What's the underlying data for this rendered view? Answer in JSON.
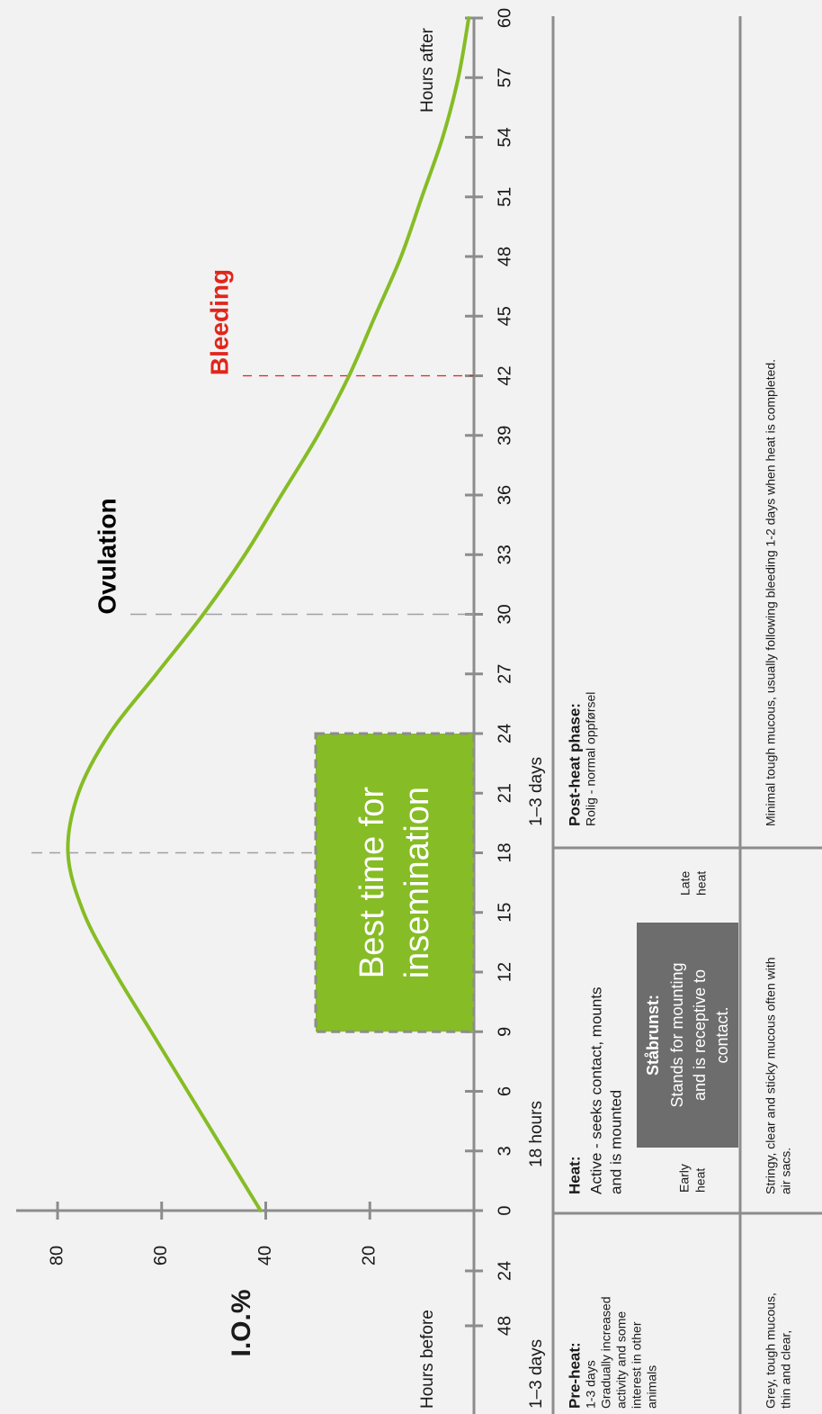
{
  "chart_data": {
    "type": "line",
    "title": "",
    "ylabel": "I.O.%",
    "y_ticks": [
      20,
      40,
      60,
      80
    ],
    "ylim": [
      0,
      90
    ],
    "x_label_before": "Hours before",
    "x_label_after": "Hours after",
    "x_ticks_before": [
      "48",
      "24"
    ],
    "x_ticks_after": [
      0,
      3,
      6,
      9,
      12,
      15,
      18,
      21,
      24,
      27,
      30,
      33,
      36,
      39,
      42,
      45,
      48,
      51,
      54,
      57,
      60
    ],
    "series": [
      {
        "x": [
          0,
          3,
          6,
          9,
          12,
          15,
          18,
          21,
          24,
          27,
          30,
          33,
          36,
          39,
          42,
          45,
          48,
          51,
          54,
          57,
          60
        ],
        "values": [
          41,
          48,
          55,
          62,
          69,
          75,
          78,
          76,
          70,
          61,
          52,
          44,
          37,
          30,
          24,
          19,
          14,
          10,
          6,
          3,
          1
        ],
        "color": "#86bc25"
      }
    ],
    "markers": [
      {
        "label": "Ovulation",
        "x": 30,
        "color": "#000000"
      },
      {
        "label": "Bleeding",
        "x": 42,
        "color": "#e1251b"
      }
    ],
    "peak_x": 18,
    "best_time": {
      "text_line1": "Best time for",
      "text_line2": "insemination",
      "x_start": 9,
      "x_end": 24,
      "color": "#86bc25"
    }
  },
  "phases": {
    "durations": [
      "1–3 days",
      "18 hours",
      "1–3 days"
    ],
    "preheat": {
      "title": "Pre-heat:",
      "lines": [
        "1-3 days",
        "Gradually increased",
        "activity and some",
        "interest in other",
        "animals"
      ]
    },
    "heat": {
      "title": "Heat:",
      "lines": [
        "Active - seeks contact, mounts",
        "and is mounted"
      ],
      "early": [
        "Early",
        "heat"
      ],
      "late": [
        "Late",
        "heat"
      ],
      "standing_title": "Ståbrunst:",
      "standing_lines": [
        "Stands for mounting",
        "and is receptive to",
        "contact."
      ]
    },
    "postheat": {
      "title": "Post-heat phase:",
      "lines": [
        "Rolig - normal oppførsel"
      ]
    }
  },
  "mucus": {
    "preheat": [
      "Grey, tough mucous,",
      "thin and clear,"
    ],
    "heat": [
      "Stringy, clear and sticky mucous often with",
      "air sacs."
    ],
    "postheat": [
      "Minimal tough mucous, usually following bleeding 1-2 days when heat is completed."
    ]
  }
}
